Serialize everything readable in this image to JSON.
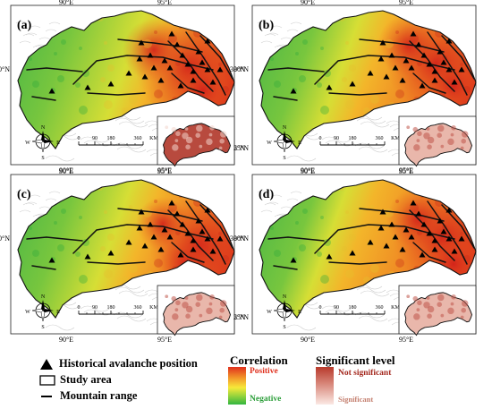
{
  "colors": {
    "positive": "#e0301e",
    "negative": "#3cb043",
    "not_significant": "#b83a2c",
    "significant": "#f7dcd5",
    "ramp_positive": "#e0301e",
    "ramp_middle": "#f7e93a",
    "ramp_negative": "#33b540",
    "ramp_significance_top": "#b83a2c",
    "ramp_significance_bottom": "#fbe9e4"
  },
  "panels": [
    {
      "id": "a",
      "label": "(a)",
      "variant": "a"
    },
    {
      "id": "b",
      "label": "(b)",
      "variant": "b"
    },
    {
      "id": "c",
      "label": "(c)",
      "variant": "c"
    },
    {
      "id": "d",
      "label": "(d)",
      "variant": "d"
    }
  ],
  "axes": {
    "lon_left": "90°E",
    "lon_right": "95°E",
    "lat_top": "30°N",
    "lat_bottom": "25°N"
  },
  "scalebar": {
    "ticks": [
      "0",
      "90",
      "180",
      "360"
    ],
    "unit": "KM"
  },
  "compass": {
    "n": "N",
    "s": "S",
    "e": "E",
    "w": "W"
  },
  "legend": {
    "avalanche_label": "Historical avalanche position",
    "study_area_label": "Study area",
    "mountain_label": "Mountain range",
    "correlation_title": "Correlation",
    "positive_label": "Positive",
    "negative_label": "Negative",
    "significance_title": "Significant level",
    "not_significant_label": "Not significant",
    "significant_label": "Significant"
  }
}
